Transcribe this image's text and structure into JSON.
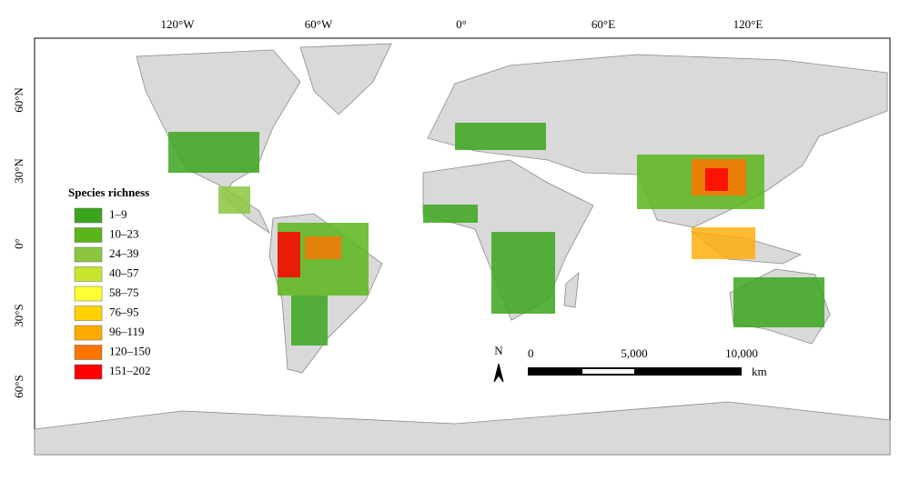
{
  "map": {
    "x_labels": [
      "120°W",
      "60°W",
      "0°",
      "60°E",
      "120°E"
    ],
    "y_labels": [
      "60°N",
      "30°N",
      "0°",
      "30°S",
      "60°S"
    ],
    "legend": {
      "title": "Species richness",
      "items": [
        {
          "label": "1–9",
          "color": "#3aa51c"
        },
        {
          "label": "10–23",
          "color": "#5bb51a"
        },
        {
          "label": "24–39",
          "color": "#8cc63f"
        },
        {
          "label": "40–57",
          "color": "#c8e62e"
        },
        {
          "label": "58–75",
          "color": "#ffff33"
        },
        {
          "label": "76–95",
          "color": "#ffd200"
        },
        {
          "label": "96–119",
          "color": "#ffaa00"
        },
        {
          "label": "120–150",
          "color": "#ff7300"
        },
        {
          "label": "151–202",
          "color": "#ff0000"
        }
      ]
    },
    "scale_bar": {
      "labels": [
        "0",
        "5,000",
        "10,000"
      ],
      "unit": "km"
    },
    "north_arrow": "N"
  }
}
